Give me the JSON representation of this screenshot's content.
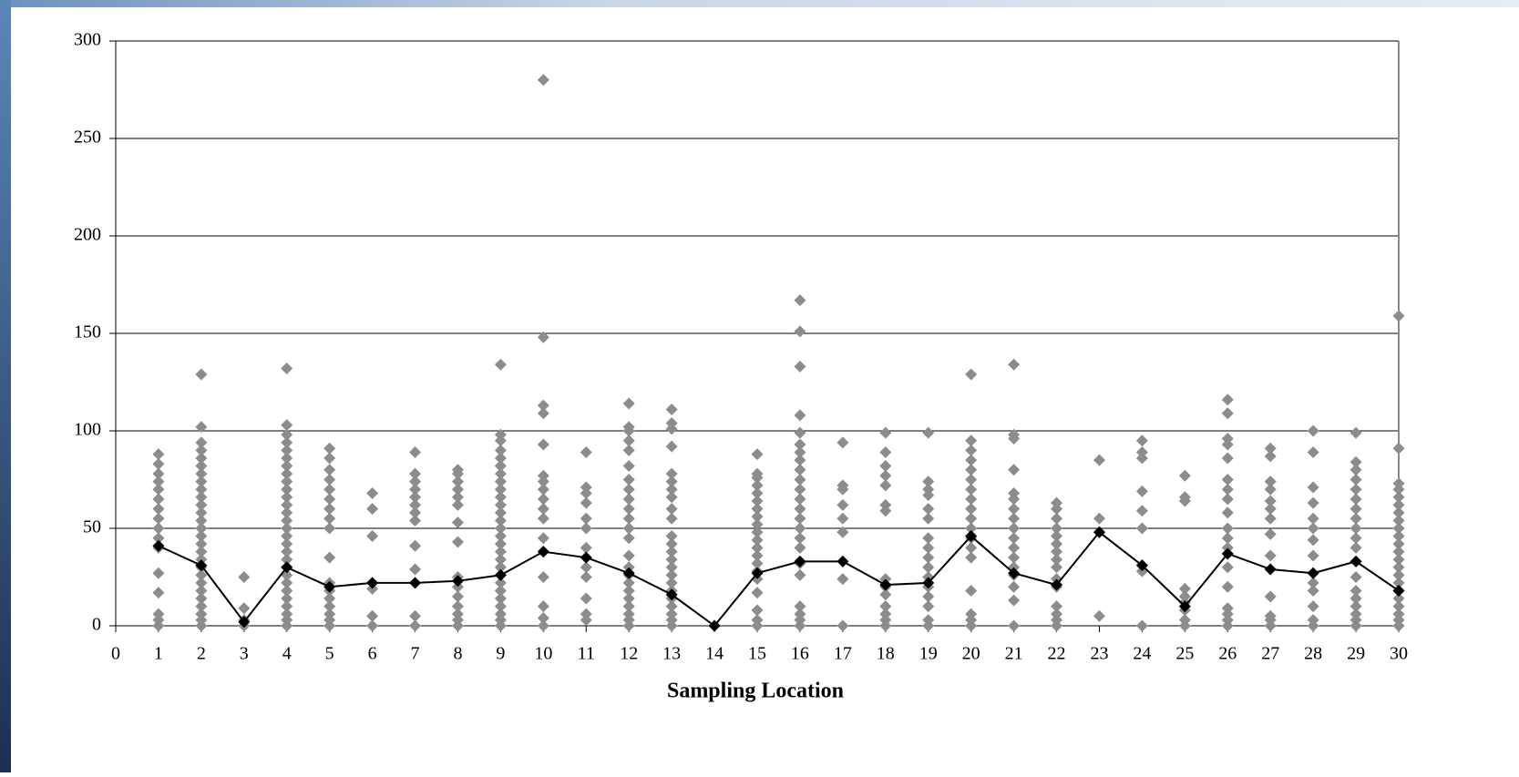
{
  "chart_data": {
    "type": "scatter",
    "x_label": "Sampling Location",
    "xlim": [
      0,
      30
    ],
    "xticks": [
      0,
      1,
      2,
      3,
      4,
      5,
      6,
      7,
      8,
      9,
      10,
      11,
      12,
      13,
      14,
      15,
      16,
      17,
      18,
      19,
      20,
      21,
      22,
      23,
      24,
      25,
      26,
      27,
      28,
      29,
      30
    ],
    "ylim": [
      0,
      300
    ],
    "yticks": [
      0,
      50,
      100,
      150,
      200,
      250,
      300
    ],
    "grid": true,
    "point_color": "#8c8c8c",
    "mean_color": "#000000",
    "groups": [
      {
        "x": 1,
        "mean": 41,
        "values": [
          0,
          3,
          6,
          17,
          27,
          40,
          45,
          50,
          55,
          60,
          65,
          70,
          74,
          78,
          83,
          88
        ]
      },
      {
        "x": 2,
        "mean": 31,
        "values": [
          0,
          3,
          6,
          10,
          14,
          18,
          22,
          26,
          30,
          34,
          38,
          42,
          46,
          50,
          54,
          58,
          62,
          66,
          70,
          74,
          78,
          82,
          86,
          90,
          94,
          102,
          129
        ]
      },
      {
        "x": 3,
        "mean": 2,
        "values": [
          0,
          3,
          9,
          25
        ]
      },
      {
        "x": 4,
        "mean": 30,
        "values": [
          0,
          3,
          6,
          10,
          14,
          18,
          22,
          26,
          30,
          34,
          38,
          42,
          46,
          50,
          54,
          58,
          62,
          66,
          70,
          74,
          78,
          82,
          86,
          90,
          94,
          98,
          103,
          132
        ]
      },
      {
        "x": 5,
        "mean": 20,
        "values": [
          0,
          3,
          6,
          10,
          14,
          18,
          22,
          35,
          50,
          55,
          60,
          65,
          70,
          75,
          80,
          86,
          91
        ]
      },
      {
        "x": 6,
        "mean": 22,
        "values": [
          0,
          5,
          19,
          22,
          46,
          60,
          68
        ]
      },
      {
        "x": 7,
        "mean": 22,
        "values": [
          0,
          5,
          22,
          29,
          41,
          54,
          58,
          62,
          66,
          70,
          74,
          78,
          89
        ]
      },
      {
        "x": 8,
        "mean": 23,
        "values": [
          0,
          3,
          6,
          10,
          15,
          20,
          25,
          43,
          53,
          62,
          66,
          70,
          74,
          78,
          80
        ]
      },
      {
        "x": 9,
        "mean": 26,
        "values": [
          0,
          3,
          6,
          10,
          14,
          18,
          22,
          26,
          30,
          34,
          38,
          42,
          46,
          50,
          54,
          58,
          62,
          66,
          70,
          74,
          78,
          82,
          86,
          90,
          95,
          98,
          134
        ]
      },
      {
        "x": 10,
        "mean": 38,
        "values": [
          0,
          4,
          10,
          25,
          38,
          45,
          55,
          60,
          65,
          70,
          74,
          77,
          93,
          109,
          113,
          148,
          280
        ]
      },
      {
        "x": 11,
        "mean": 35,
        "values": [
          3,
          6,
          14,
          25,
          30,
          40,
          50,
          55,
          63,
          68,
          71,
          89
        ]
      },
      {
        "x": 12,
        "mean": 27,
        "values": [
          0,
          3,
          6,
          10,
          14,
          18,
          22,
          26,
          30,
          36,
          45,
          50,
          55,
          60,
          65,
          70,
          75,
          82,
          90,
          95,
          100,
          102,
          114
        ]
      },
      {
        "x": 13,
        "mean": 16,
        "values": [
          0,
          3,
          6,
          10,
          14,
          18,
          22,
          26,
          30,
          34,
          38,
          42,
          46,
          55,
          60,
          66,
          70,
          74,
          78,
          92,
          101,
          104,
          111
        ]
      },
      {
        "x": 14,
        "mean": 0,
        "values": [
          0
        ]
      },
      {
        "x": 15,
        "mean": 27,
        "values": [
          0,
          3,
          8,
          17,
          24,
          28,
          32,
          36,
          40,
          44,
          48,
          52,
          56,
          60,
          64,
          68,
          72,
          76,
          78,
          88
        ]
      },
      {
        "x": 16,
        "mean": 33,
        "values": [
          0,
          3,
          6,
          10,
          26,
          32,
          40,
          45,
          50,
          55,
          60,
          65,
          70,
          75,
          80,
          85,
          89,
          93,
          99,
          108,
          133,
          151,
          167
        ]
      },
      {
        "x": 17,
        "mean": 33,
        "values": [
          0,
          24,
          48,
          55,
          62,
          70,
          72,
          94
        ]
      },
      {
        "x": 18,
        "mean": 21,
        "values": [
          0,
          3,
          6,
          10,
          16,
          20,
          24,
          59,
          62,
          72,
          77,
          82,
          89,
          99
        ]
      },
      {
        "x": 19,
        "mean": 22,
        "values": [
          0,
          3,
          10,
          15,
          20,
          25,
          30,
          35,
          40,
          45,
          55,
          60,
          67,
          70,
          74,
          99
        ]
      },
      {
        "x": 20,
        "mean": 46,
        "values": [
          0,
          3,
          6,
          18,
          35,
          40,
          45,
          50,
          55,
          60,
          65,
          70,
          75,
          80,
          85,
          90,
          95,
          129
        ]
      },
      {
        "x": 21,
        "mean": 27,
        "values": [
          0,
          13,
          20,
          26,
          30,
          35,
          40,
          45,
          50,
          55,
          60,
          65,
          68,
          80,
          96,
          98,
          134
        ]
      },
      {
        "x": 22,
        "mean": 21,
        "values": [
          0,
          3,
          6,
          10,
          20,
          24,
          30,
          34,
          38,
          42,
          46,
          50,
          55,
          60,
          63
        ]
      },
      {
        "x": 23,
        "mean": 48,
        "values": [
          5,
          48,
          55,
          85
        ]
      },
      {
        "x": 24,
        "mean": 31,
        "values": [
          0,
          28,
          31,
          50,
          59,
          69,
          86,
          89,
          95
        ]
      },
      {
        "x": 25,
        "mean": 10,
        "values": [
          0,
          3,
          8,
          12,
          15,
          19,
          64,
          66,
          77
        ]
      },
      {
        "x": 26,
        "mean": 37,
        "values": [
          0,
          3,
          6,
          9,
          20,
          30,
          37,
          40,
          45,
          50,
          58,
          65,
          70,
          75,
          86,
          93,
          96,
          109,
          116
        ]
      },
      {
        "x": 27,
        "mean": 29,
        "values": [
          0,
          3,
          5,
          15,
          36,
          47,
          55,
          60,
          64,
          70,
          74,
          87,
          91
        ]
      },
      {
        "x": 28,
        "mean": 27,
        "values": [
          0,
          3,
          10,
          18,
          22,
          27,
          36,
          44,
          50,
          55,
          63,
          71,
          89,
          100
        ]
      },
      {
        "x": 29,
        "mean": 33,
        "values": [
          0,
          3,
          6,
          10,
          14,
          18,
          25,
          33,
          40,
          45,
          50,
          55,
          60,
          65,
          70,
          75,
          80,
          84,
          99
        ]
      },
      {
        "x": 30,
        "mean": 18,
        "values": [
          0,
          3,
          6,
          10,
          14,
          18,
          22,
          26,
          30,
          34,
          38,
          42,
          46,
          50,
          54,
          58,
          62,
          66,
          70,
          73,
          91,
          159
        ]
      }
    ]
  }
}
